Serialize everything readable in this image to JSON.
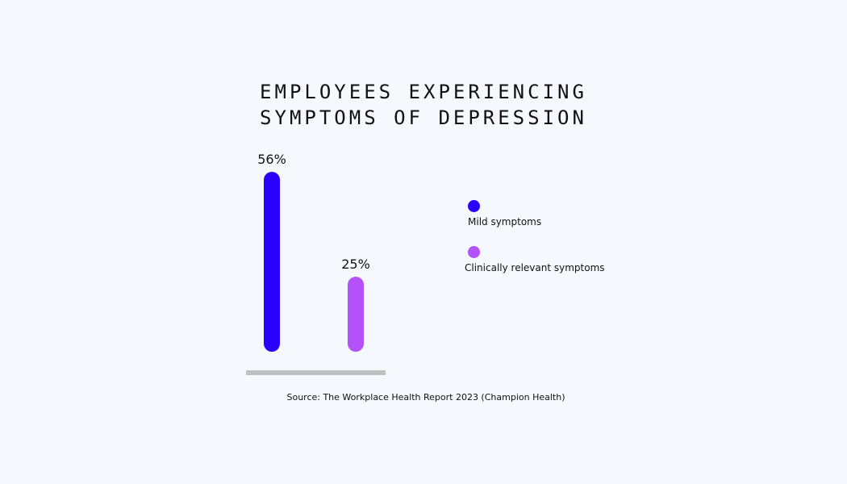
{
  "chart_data": {
    "type": "bar",
    "title": "EMPLOYEES EXPERIENCING SYMPTOMS OF DEPRESSION",
    "title_lines": [
      "EMPLOYEES EXPERIENCING",
      "SYMPTOMS OF DEPRESSION"
    ],
    "categories": [
      "Mild symptoms",
      "Clinically relevant symptoms"
    ],
    "values": [
      56,
      25
    ],
    "data_labels": [
      "56%",
      "25%"
    ],
    "colors": [
      "#2b00ff",
      "#b352f8"
    ],
    "ylim": [
      0,
      56
    ],
    "grid": false,
    "legend_placement": "right",
    "baseline_color": "#bfbfbf"
  },
  "source": "Source: The Workplace Health Report 2023 (Champion Health)"
}
